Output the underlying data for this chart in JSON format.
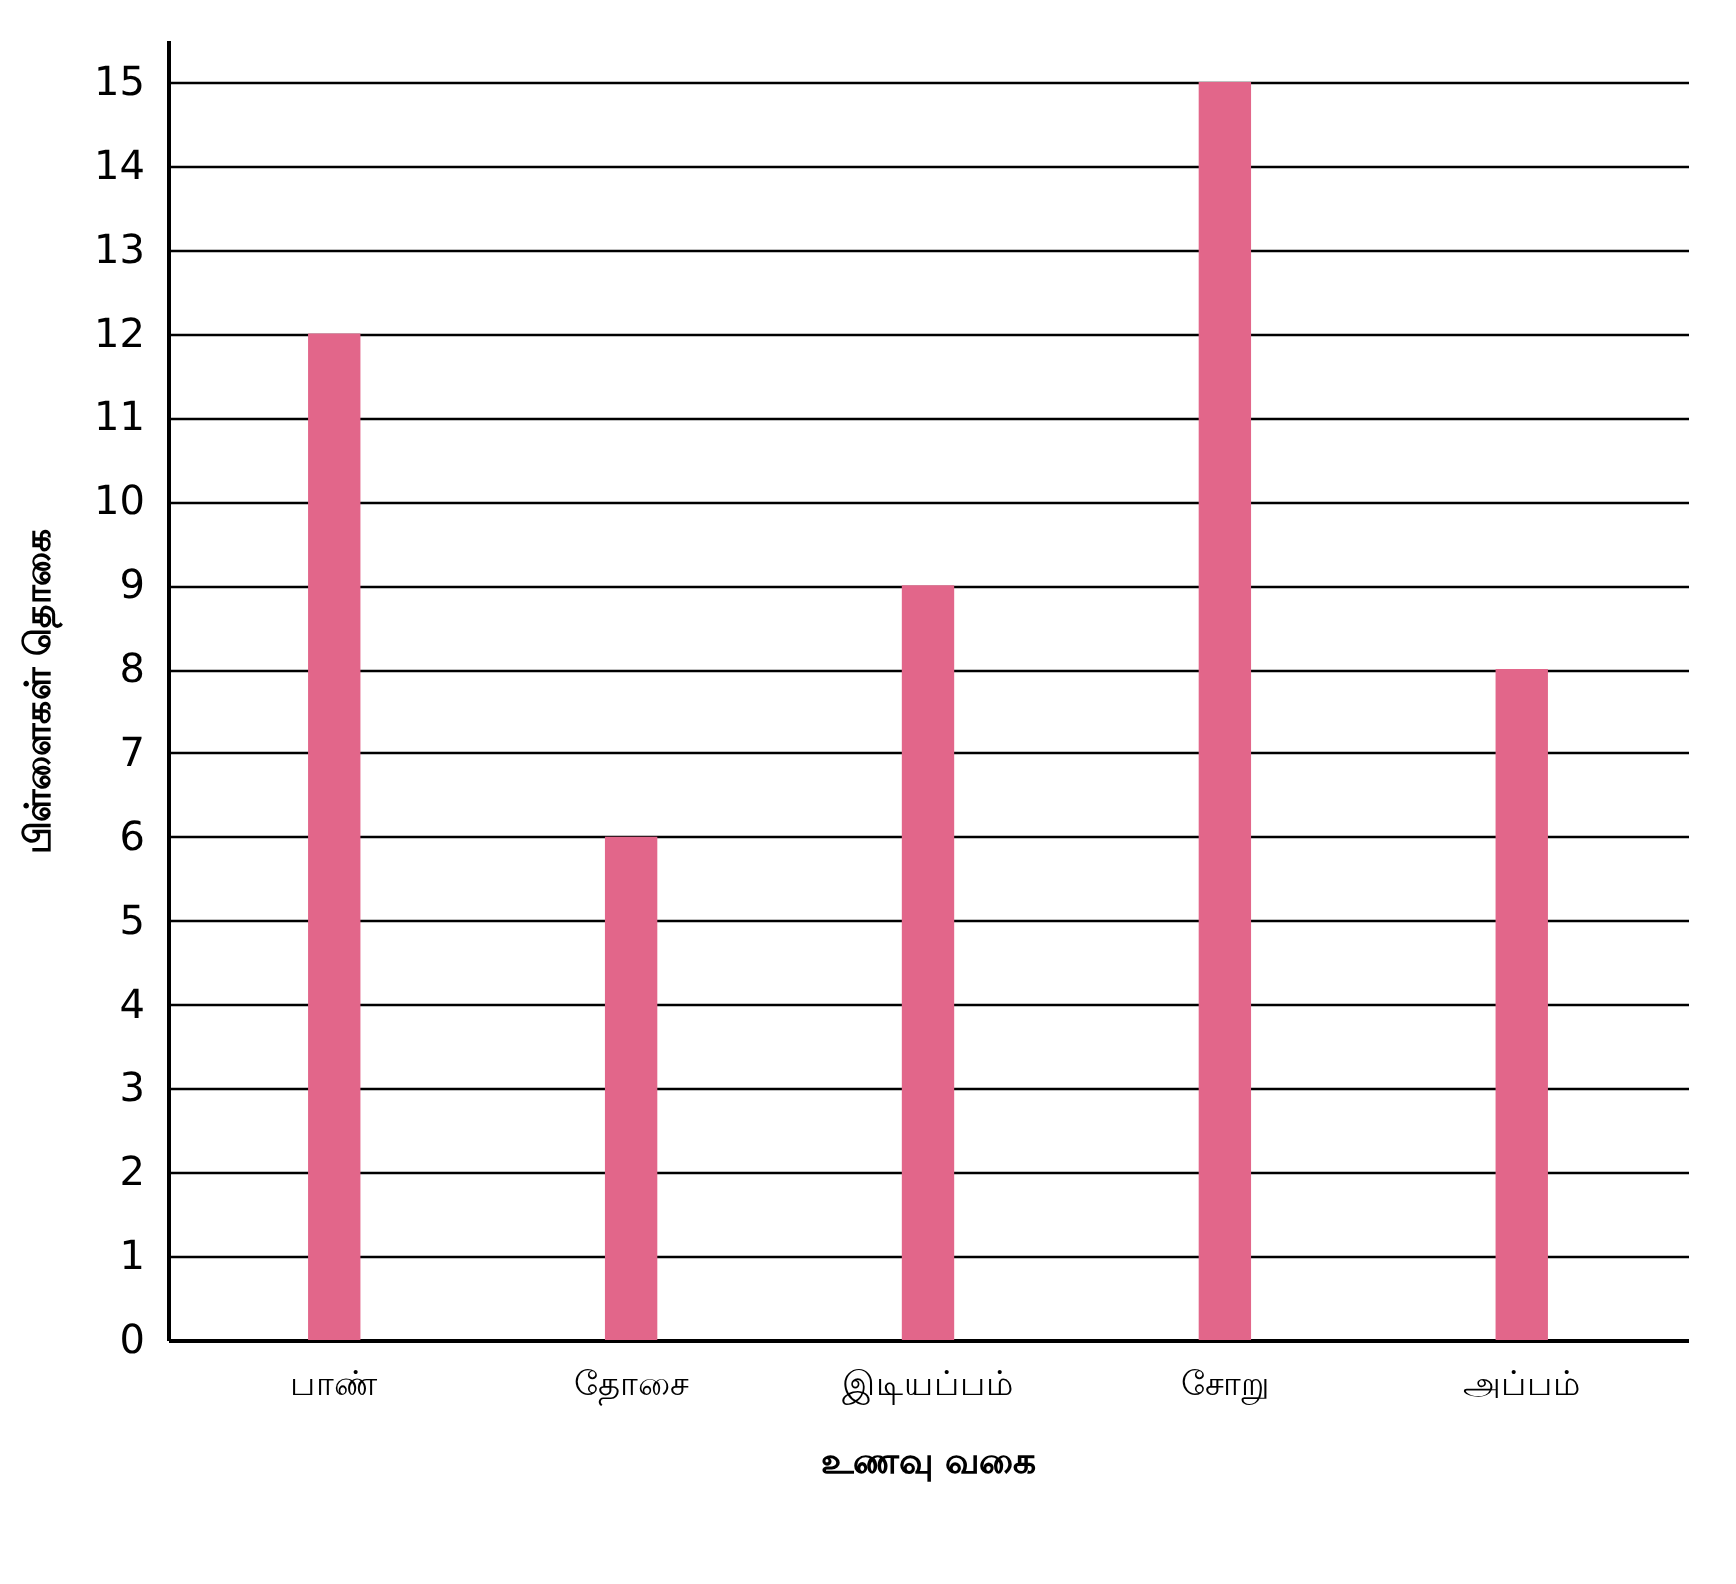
{
  "chart_data": {
    "type": "bar",
    "xlabel": "உணவு வகை",
    "ylabel": "பிள்ளைகள் தொகை",
    "categories": [
      "பாண்",
      "தோசை",
      "இடியப்பம்",
      "சோறு",
      "அப்பம்"
    ],
    "values": [
      12,
      6,
      9,
      15,
      8
    ],
    "color": "#e2668a",
    "ylim": [
      0,
      15.5
    ],
    "yticks": [
      0,
      1,
      2,
      3,
      4,
      5,
      6,
      7,
      8,
      9,
      10,
      11,
      12,
      13,
      14,
      15
    ],
    "grid": "y"
  }
}
